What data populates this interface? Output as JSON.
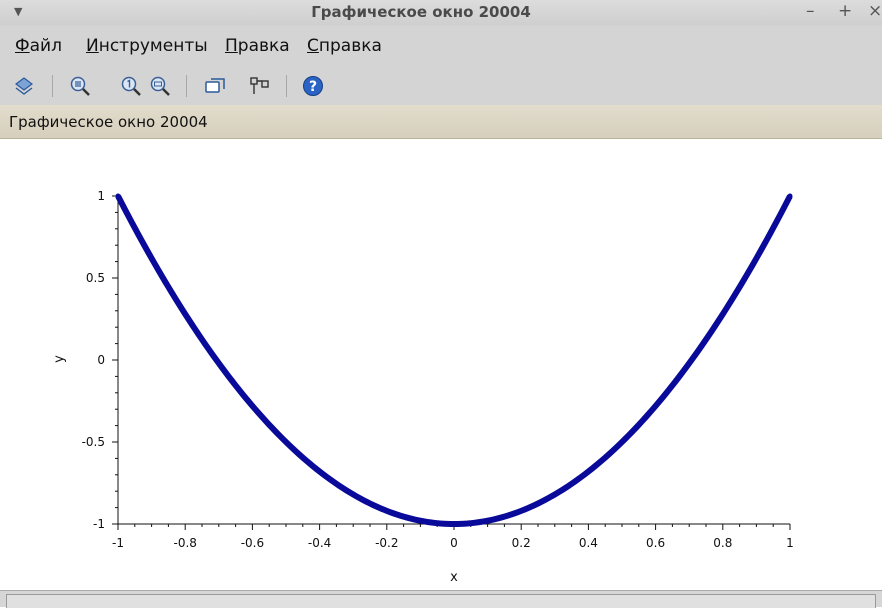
{
  "window": {
    "title": "Графическое окно 20004",
    "buttons": [
      "–",
      "+",
      "×"
    ]
  },
  "menu": [
    {
      "accel": "Ф",
      "rest": "айл"
    },
    {
      "accel": "И",
      "rest": "нструменты"
    },
    {
      "accel": "П",
      "rest": "равка"
    },
    {
      "accel": "С",
      "rest": "правка"
    }
  ],
  "toolbar": {
    "icons": [
      "rotate-icon",
      "zoom-in-icon",
      "zoom-reset-icon",
      "zoom-out-icon",
      "datatip-icon",
      "editor-icon",
      "help-icon"
    ]
  },
  "subtitle": "Графическое окно 20004",
  "chart_data": {
    "type": "line",
    "function": "y = 2x^2 - 1",
    "x": [
      -1,
      -0.9,
      -0.8,
      -0.7,
      -0.6,
      -0.5,
      -0.4,
      -0.3,
      -0.2,
      -0.1,
      0,
      0.1,
      0.2,
      0.3,
      0.4,
      0.5,
      0.6,
      0.7,
      0.8,
      0.9,
      1
    ],
    "y": [
      1,
      0.62,
      0.28,
      -0.02,
      -0.28,
      -0.5,
      -0.68,
      -0.82,
      -0.92,
      -0.98,
      -1,
      -0.98,
      -0.92,
      -0.82,
      -0.68,
      -0.5,
      -0.28,
      -0.02,
      0.28,
      0.62,
      1
    ],
    "xlabel": "x",
    "ylabel": "y",
    "xlim": [
      -1,
      1
    ],
    "ylim": [
      -1,
      1
    ],
    "xticks": [
      "-1",
      "-0.8",
      "-0.6",
      "-0.4",
      "-0.2",
      "0",
      "0.2",
      "0.4",
      "0.6",
      "0.8",
      "1"
    ],
    "yticks": [
      "-1",
      "-0.5",
      "0",
      "0.5",
      "1"
    ],
    "line_color": "#0a0a9a",
    "grid": false
  }
}
